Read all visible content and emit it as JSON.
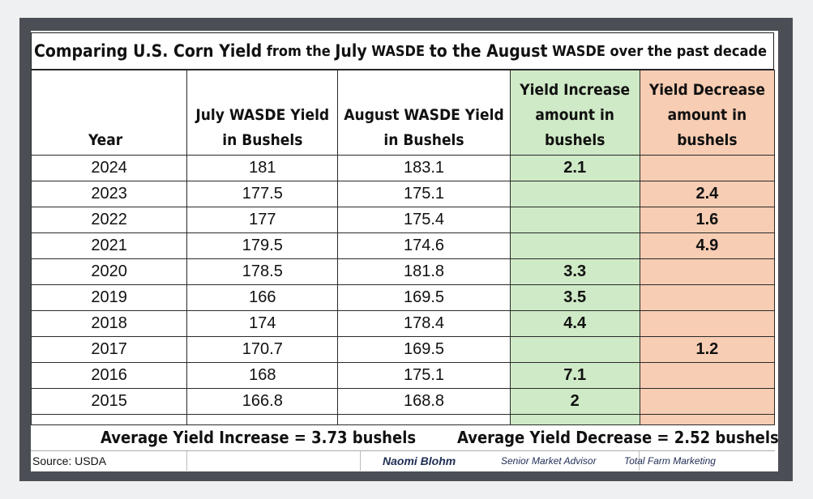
{
  "title": {
    "parts": [
      {
        "text": "Comparing U.S. Corn Yield",
        "size": "big"
      },
      {
        "text": " from the ",
        "size": "small"
      },
      {
        "text": "July",
        "size": "big"
      },
      {
        "text": " WASDE ",
        "size": "small"
      },
      {
        "text": "to the August",
        "size": "big"
      },
      {
        "text": " WASDE over the past decade",
        "size": "small"
      }
    ]
  },
  "columns": {
    "year": "Year",
    "july": "July WASDE Yield in Bushels",
    "august": "August WASDE Yield in Bushels",
    "increase": "Yield Increase amount in bushels",
    "decrease": "Yield Decrease amount in bushels"
  },
  "rows": [
    {
      "year": "2024",
      "july": "181",
      "august": "183.1",
      "increase": "2.1",
      "decrease": ""
    },
    {
      "year": "2023",
      "july": "177.5",
      "august": "175.1",
      "increase": "",
      "decrease": "2.4"
    },
    {
      "year": "2022",
      "july": "177",
      "august": "175.4",
      "increase": "",
      "decrease": "1.6"
    },
    {
      "year": "2021",
      "july": "179.5",
      "august": "174.6",
      "increase": "",
      "decrease": "4.9"
    },
    {
      "year": "2020",
      "july": "178.5",
      "august": "181.8",
      "increase": "3.3",
      "decrease": ""
    },
    {
      "year": "2019",
      "july": "166",
      "august": "169.5",
      "increase": "3.5",
      "decrease": ""
    },
    {
      "year": "2018",
      "july": "174",
      "august": "178.4",
      "increase": "4.4",
      "decrease": ""
    },
    {
      "year": "2017",
      "july": "170.7",
      "august": "169.5",
      "increase": "",
      "decrease": "1.2"
    },
    {
      "year": "2016",
      "july": "168",
      "august": "175.1",
      "increase": "7.1",
      "decrease": ""
    },
    {
      "year": "2015",
      "july": "166.8",
      "august": "168.8",
      "increase": "2",
      "decrease": ""
    }
  ],
  "averages": {
    "increase": "Average Yield Increase = 3.73 bushels",
    "decrease": "Average Yield Decrease = 2.52 bushels"
  },
  "footer": {
    "source": "Source: USDA",
    "name": "Naomi Blohm",
    "role": "Senior Market Advisor",
    "company": "Total Farm Marketing"
  },
  "colors": {
    "increase_fill": "#cfeac6",
    "decrease_fill": "#f7cdb3",
    "frame": "#4b4f55",
    "signature": "#1f2d55"
  }
}
